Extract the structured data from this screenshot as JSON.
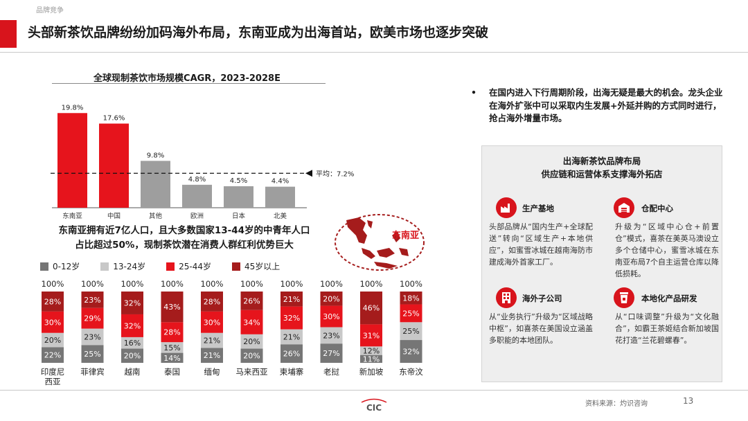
{
  "header": {
    "section": "品牌竞争",
    "title": "头部新茶饮品牌纷纷加码海外布局，东南亚成为出海首站，欧美市场也逐步突破"
  },
  "colors": {
    "accent": "#d8141c",
    "dark_red": "#a51c1c",
    "gray": "#9e9e9e",
    "light_gray": "#c8c8c8",
    "dark_gray": "#767676"
  },
  "chart_data": [
    {
      "type": "bar",
      "title": "全球现制茶饮市场规模CAGR，2023-2028E",
      "categories": [
        "东南亚",
        "中国",
        "其他",
        "欧洲",
        "日本",
        "北美"
      ],
      "values": [
        19.8,
        17.6,
        9.8,
        4.8,
        4.5,
        4.4
      ],
      "value_labels": [
        "19.8%",
        "17.6%",
        "9.8%",
        "4.8%",
        "4.5%",
        "4.4%"
      ],
      "bar_colors": [
        "#e6141c",
        "#e6141c",
        "#9e9e9e",
        "#9e9e9e",
        "#9e9e9e",
        "#9e9e9e"
      ],
      "reference_line": {
        "value": 7.2,
        "label": "平均：7.2%"
      },
      "ylim": [
        0,
        21
      ],
      "grid": false
    },
    {
      "type": "bar",
      "stacked": true,
      "categories": [
        "印度尼西亚",
        "菲律宾",
        "越南",
        "泰国",
        "缅甸",
        "马来西亚",
        "柬埔寨",
        "老挝",
        "新加坡",
        "东帝汶"
      ],
      "category_lines": [
        [
          "印度尼",
          "西亚"
        ],
        [
          "菲律宾"
        ],
        [
          "越南"
        ],
        [
          "泰国"
        ],
        [
          "缅甸"
        ],
        [
          "马来西亚"
        ],
        [
          "柬埔寨"
        ],
        [
          "老挝"
        ],
        [
          "新加坡"
        ],
        [
          "东帝汶"
        ]
      ],
      "totals": [
        "100%",
        "100%",
        "100%",
        "100%",
        "100%",
        "100%",
        "100%",
        "100%",
        "100%",
        "100%"
      ],
      "series": [
        {
          "name": "0-12岁",
          "color": "#767676",
          "values": [
            22,
            25,
            20,
            14,
            21,
            20,
            26,
            27,
            11,
            32
          ]
        },
        {
          "name": "13-24岁",
          "color": "#c8c8c8",
          "values": [
            20,
            23,
            16,
            15,
            21,
            20,
            21,
            23,
            12,
            25
          ]
        },
        {
          "name": "25-44岁",
          "color": "#e6141c",
          "values": [
            30,
            29,
            32,
            28,
            30,
            34,
            32,
            30,
            31,
            25
          ]
        },
        {
          "name": "45岁以上",
          "color": "#a51c1c",
          "values": [
            28,
            23,
            32,
            43,
            28,
            26,
            21,
            20,
            46,
            18
          ]
        }
      ],
      "legend_position": "top-left",
      "grid": false
    }
  ],
  "sea_summary": {
    "line1": "东南亚拥有近7亿人口，且大多数国家13-44岁的中青年人口",
    "line2": "占比超过50%，现制茶饮潜在消费人群红利优势巨大"
  },
  "map": {
    "label": "东南亚"
  },
  "bullet": {
    "text": "在国内进入下行周期阶段，出海无疑是最大的机会。龙头企业在海外扩张中可以采取内生发展+外延并购的方式同时进行，抢占海外增量市场。"
  },
  "panel": {
    "title_line1": "出海新茶饮品牌布局",
    "title_line2": "供应链和运营体系支撑海外拓店",
    "items": [
      {
        "heading": "生产基地",
        "icon": "factory-icon",
        "body": "头部品牌从“国内生产+全球配送”转向“区域生产+本地供应”，如蜜雪冰城在越南海防市建成海外首家工厂。"
      },
      {
        "heading": "仓配中心",
        "icon": "warehouse-icon",
        "body": "升级为“区域中心仓+前置仓”模式，喜茶在美英马澳设立多个仓储中心，蜜雪冰城在东南亚布局7个自主运营仓库以降低损耗。"
      },
      {
        "heading": "海外子公司",
        "icon": "building-icon",
        "body": "从“业务执行”升级为“区域战略中枢”，如喜茶在美国设立涵盖多职能的本地团队。"
      },
      {
        "heading": "本地化产品研发",
        "icon": "drink-cup-icon",
        "body": "从“口味调整”升级为“文化融合”，如霸王茶姬结合新加坡国花打造“兰花碧螺春”。"
      }
    ]
  },
  "footer": {
    "logo_text": "CIC",
    "source": "资料来源：灼识咨询",
    "page": "13"
  }
}
